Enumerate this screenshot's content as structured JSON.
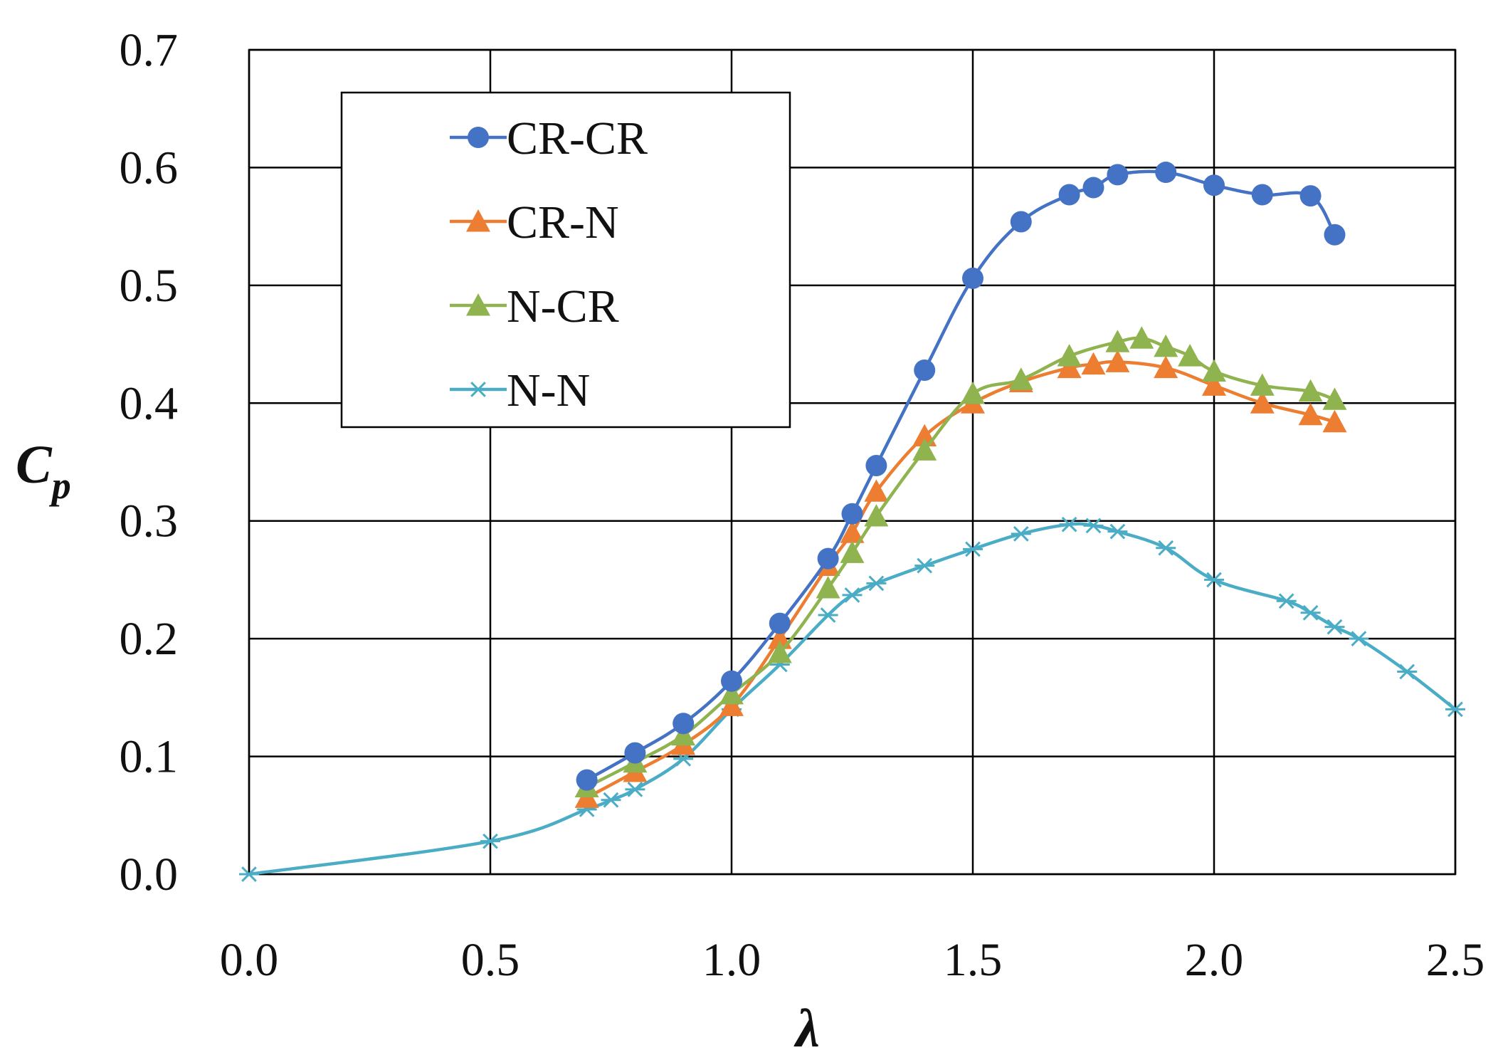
{
  "chart_data": {
    "type": "line",
    "title": "",
    "xlabel": "λ",
    "ylabel": "C",
    "ylabel_subscript": "p",
    "xlim": [
      0,
      2.5
    ],
    "ylim": [
      0,
      0.7
    ],
    "grid": true,
    "legend_position": "top-left",
    "x_ticks": [
      "0.0",
      "0.5",
      "1.0",
      "1.5",
      "2.0",
      "2.5"
    ],
    "y_ticks": [
      "0.0",
      "0.1",
      "0.2",
      "0.3",
      "0.4",
      "0.5",
      "0.6",
      "0.7"
    ],
    "series": [
      {
        "name": "CR-CR",
        "color": "#4472C4",
        "marker": "circle",
        "x": [
          0.7,
          0.8,
          0.9,
          1.0,
          1.1,
          1.2,
          1.25,
          1.3,
          1.4,
          1.5,
          1.6,
          1.7,
          1.75,
          1.8,
          1.9,
          2.0,
          2.1,
          2.2,
          2.25
        ],
        "y": [
          0.08,
          0.103,
          0.128,
          0.164,
          0.213,
          0.268,
          0.306,
          0.347,
          0.428,
          0.506,
          0.554,
          0.577,
          0.583,
          0.594,
          0.596,
          0.585,
          0.577,
          0.576,
          0.543
        ]
      },
      {
        "name": "CR-N",
        "color": "#ED7D31",
        "marker": "triangle",
        "x": [
          0.7,
          0.8,
          0.9,
          1.0,
          1.1,
          1.2,
          1.25,
          1.3,
          1.4,
          1.5,
          1.6,
          1.7,
          1.75,
          1.8,
          1.9,
          2.0,
          2.1,
          2.2,
          2.25
        ],
        "y": [
          0.065,
          0.087,
          0.11,
          0.143,
          0.2,
          0.262,
          0.29,
          0.325,
          0.372,
          0.4,
          0.418,
          0.43,
          0.433,
          0.435,
          0.43,
          0.415,
          0.4,
          0.39,
          0.384
        ]
      },
      {
        "name": "N-CR",
        "color": "#8FB44F",
        "marker": "triangle",
        "x": [
          0.7,
          0.8,
          0.9,
          1.0,
          1.1,
          1.2,
          1.25,
          1.3,
          1.4,
          1.5,
          1.6,
          1.7,
          1.8,
          1.85,
          1.9,
          1.95,
          2.0,
          2.1,
          2.2,
          2.25
        ],
        "y": [
          0.074,
          0.095,
          0.118,
          0.153,
          0.188,
          0.243,
          0.273,
          0.304,
          0.36,
          0.408,
          0.42,
          0.44,
          0.452,
          0.455,
          0.448,
          0.44,
          0.427,
          0.415,
          0.41,
          0.403
        ]
      },
      {
        "name": "N-N",
        "color": "#4BACC6",
        "marker": "asterisk",
        "x": [
          0.0,
          0.5,
          0.7,
          0.75,
          0.8,
          0.9,
          1.0,
          1.1,
          1.2,
          1.25,
          1.3,
          1.4,
          1.5,
          1.6,
          1.7,
          1.75,
          1.8,
          1.9,
          2.0,
          2.15,
          2.2,
          2.25,
          2.3,
          2.4,
          2.5
        ],
        "y": [
          0.0,
          0.028,
          0.055,
          0.063,
          0.072,
          0.098,
          0.14,
          0.178,
          0.22,
          0.237,
          0.247,
          0.262,
          0.276,
          0.289,
          0.297,
          0.296,
          0.291,
          0.277,
          0.25,
          0.232,
          0.222,
          0.21,
          0.2,
          0.172,
          0.14
        ]
      }
    ]
  }
}
